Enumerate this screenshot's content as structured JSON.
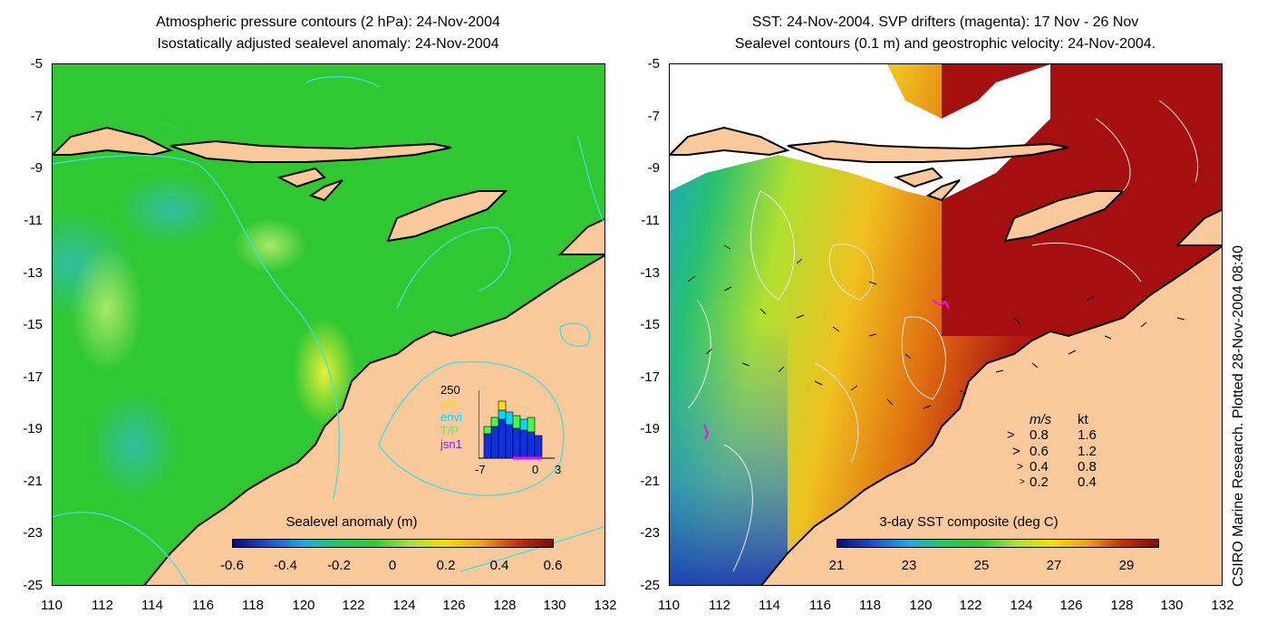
{
  "left_panel": {
    "title_line1": "Atmospheric pressure contours (2 hPa): 24-Nov-2004",
    "title_line2": "Isostatically adjusted sealevel anomaly: 24-Nov-2004",
    "colorbar": {
      "title": "Sealevel anomaly (m)",
      "labels": [
        "-0.6",
        "-0.4",
        "-0.2",
        "0",
        "0.2",
        "0.4",
        "0.6"
      ]
    },
    "inset": {
      "ymax_label": "250",
      "legend": [
        "gfo",
        "envi",
        "T/P",
        "jsn1"
      ],
      "legend_colors": [
        "#f2e000",
        "#00d8ff",
        "#40ff40",
        "#8020ff"
      ],
      "x_labels": [
        "-7",
        "0",
        "3"
      ]
    }
  },
  "right_panel": {
    "title_line1": "SST: 24-Nov-2004. SVP drifters (magenta): 17 Nov - 26 Nov",
    "title_line2": "Sealevel contours (0.1 m) and geostrophic velocity: 24-Nov-2004.",
    "colorbar": {
      "title": "3-day SST composite (deg C)",
      "labels": [
        "21",
        "23",
        "25",
        "27",
        "29"
      ]
    },
    "velocity_legend": {
      "header_ms": "m/s",
      "header_kt": "kt",
      "rows": [
        {
          "ms": "0.8",
          "kt": "1.6"
        },
        {
          "ms": "0.6",
          "kt": "1.2"
        },
        {
          "ms": "0.4",
          "kt": "0.8"
        },
        {
          "ms": "0.2",
          "kt": "0.4"
        }
      ]
    }
  },
  "axes": {
    "y_ticks": [
      "-5",
      "-7",
      "-9",
      "-11",
      "-13",
      "-15",
      "-17",
      "-19",
      "-21",
      "-23",
      "-25"
    ],
    "x_ticks": [
      "110",
      "112",
      "114",
      "116",
      "118",
      "120",
      "122",
      "124",
      "126",
      "128",
      "130",
      "132"
    ]
  },
  "side_caption": "CSIRO Marine Research. Plotted 28-Nov-2004 08:40",
  "colors": {
    "land": "#f9c89b",
    "coast": "#000000",
    "pressure_contour": "#40e0e0",
    "sealevel_base": "#2ecc2e",
    "sst_warm": "#a50f0f",
    "drifter": "#ff00ff"
  }
}
